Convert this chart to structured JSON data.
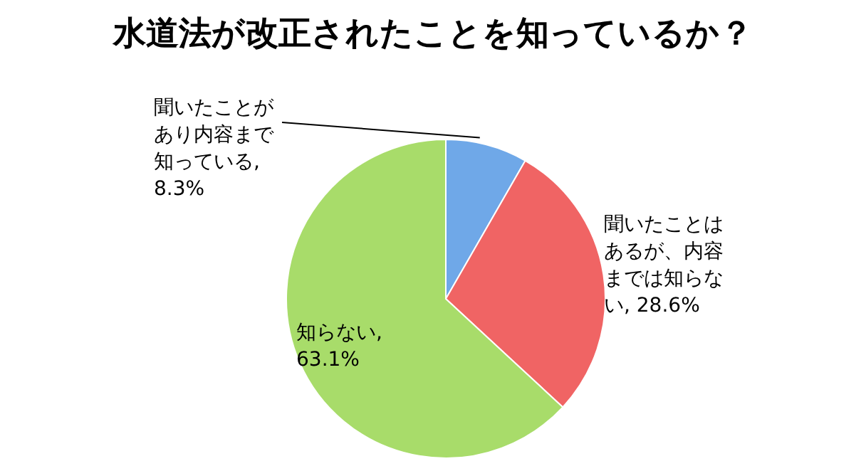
{
  "chart_data": {
    "type": "pie",
    "title": "水道法が改正されたことを知っているか？",
    "categories": [
      "聞いたことがあり内容まで知っている",
      "聞いたことはあるが、内容までは知らない",
      "知らない"
    ],
    "values": [
      8.3,
      28.6,
      63.1
    ],
    "value_labels": [
      ", 8.3%",
      ", 28.6%",
      ", 63.1%"
    ],
    "colors": [
      "#6fa8e8",
      "#f06464",
      "#a8dc6a"
    ]
  }
}
